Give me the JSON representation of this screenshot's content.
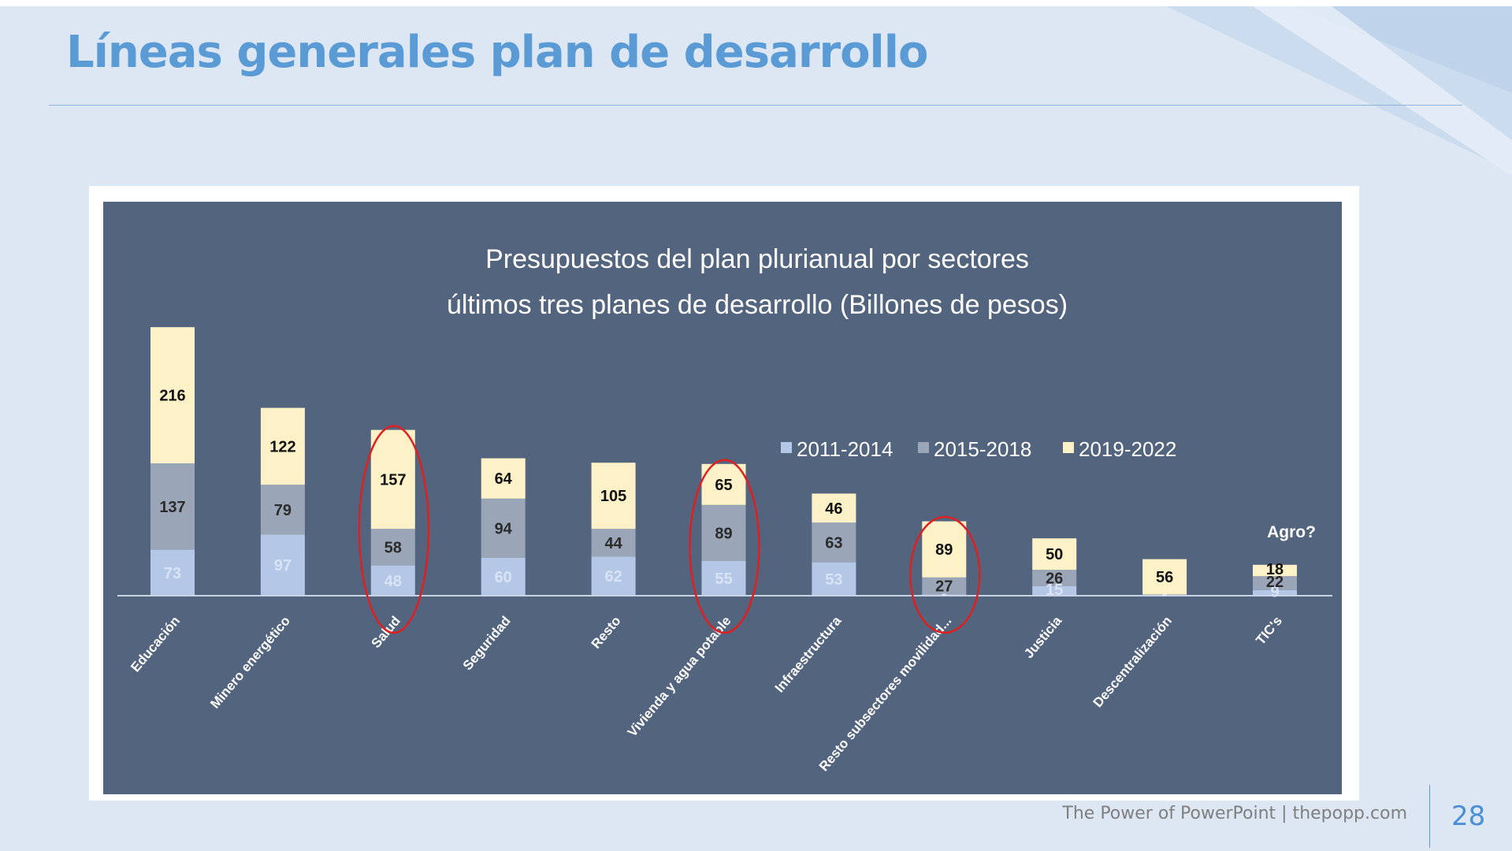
{
  "slide": {
    "title": "Líneas generales plan de desarrollo",
    "footer": "The Power of PowerPoint | thepopp.com",
    "page_number": "28"
  },
  "chart_data": {
    "type": "bar",
    "stacked": true,
    "title": "Presupuestos del plan plurianual por sectores",
    "subtitle": "últimos tres planes de desarrollo (Billones de pesos)",
    "xlabel": "",
    "ylabel": "",
    "ylim": [
      0,
      430
    ],
    "legend_position": "right-middle",
    "categories": [
      "Educación",
      "Minero energético",
      "Salud",
      "Seguridad",
      "Resto",
      "Vivienda y agua potable",
      "Infraestructura",
      "Resto subsectores movilidad...",
      "Justicia",
      "Descentralización",
      "TIC's"
    ],
    "series": [
      {
        "name": "2011-2014",
        "values": [
          73,
          97,
          48,
          60,
          62,
          55,
          53,
          2,
          15,
          1,
          9
        ],
        "labels": [
          "73",
          "97",
          "48",
          "60",
          "62",
          "55",
          "53",
          "-",
          "15",
          "-",
          "9"
        ],
        "color": "#b4c7e7",
        "label_color": "#d9e3f3"
      },
      {
        "name": "2015-2018",
        "values": [
          137,
          79,
          58,
          94,
          44,
          89,
          63,
          27,
          26,
          1,
          22
        ],
        "labels": [
          "137",
          "79",
          "58",
          "94",
          "44",
          "89",
          "63",
          "27",
          "26",
          "",
          "22"
        ],
        "color": "#9aa6b8",
        "label_color": "#2b2b2b"
      },
      {
        "name": "2019-2022",
        "values": [
          216,
          122,
          157,
          64,
          105,
          65,
          46,
          89,
          50,
          56,
          18
        ],
        "labels": [
          "216",
          "122",
          "157",
          "64",
          "105",
          "65",
          "46",
          "89",
          "50",
          "56",
          "18"
        ],
        "color": "#fdf2c7",
        "label_color": "#111111"
      }
    ],
    "highlighted_categories": [
      "Salud",
      "Vivienda y agua potable",
      "Resto subsectores movilidad..."
    ],
    "highlight_color": "#e02020",
    "annotation": "Agro?",
    "colors": {
      "plot_bg": "#53647f",
      "frame": "#ffffff",
      "axis": "#c8d3e3",
      "category_text": "#ffffff",
      "title_text": "#ffffff"
    }
  }
}
